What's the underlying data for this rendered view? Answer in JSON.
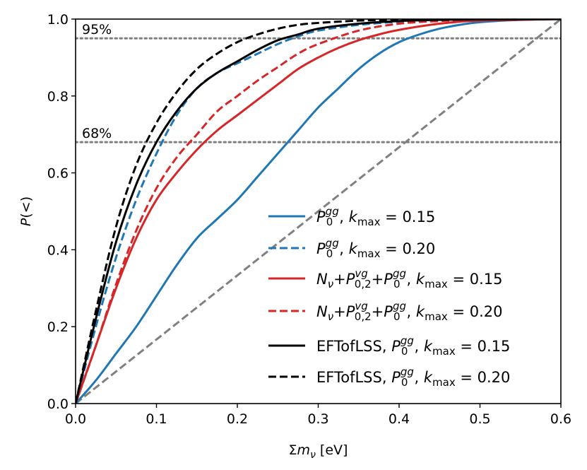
{
  "chart_data": {
    "type": "line",
    "title": "",
    "xlabel": "Σm_ν [eV]",
    "ylabel": "P(<)",
    "xlim": [
      0.0,
      0.6
    ],
    "ylim": [
      0.0,
      1.0
    ],
    "xticks": [
      0.0,
      0.1,
      0.2,
      0.3,
      0.4,
      0.5,
      0.6
    ],
    "xtick_labels": [
      "0.0",
      "0.1",
      "0.2",
      "0.3",
      "0.4",
      "0.5",
      "0.6"
    ],
    "yticks": [
      0.0,
      0.2,
      0.4,
      0.6,
      0.8,
      1.0
    ],
    "ytick_labels": [
      "0.0",
      "0.2",
      "0.4",
      "0.6",
      "0.8",
      "1.0"
    ],
    "grid": false,
    "legend_position": "lower-right",
    "reference_lines": [
      {
        "label": "95%",
        "y": 0.95,
        "style": "dotted",
        "color": "#808080"
      },
      {
        "label": "68%",
        "y": 0.68,
        "style": "dotted",
        "color": "#808080"
      }
    ],
    "diagonal": {
      "x": [
        0.0,
        0.6
      ],
      "y": [
        0.0,
        1.0
      ],
      "style": "dashed",
      "color": "#808080"
    },
    "series": [
      {
        "name": "P0gg, kmax = 0.15",
        "color": "#1f77b4",
        "style": "solid",
        "x": [
          0,
          0.025,
          0.05,
          0.075,
          0.1,
          0.125,
          0.15,
          0.175,
          0.2,
          0.225,
          0.25,
          0.275,
          0.3,
          0.325,
          0.35,
          0.375,
          0.4,
          0.425,
          0.45,
          0.475,
          0.5,
          0.55,
          0.6
        ],
        "y": [
          0,
          0.06,
          0.13,
          0.2,
          0.28,
          0.36,
          0.43,
          0.48,
          0.53,
          0.59,
          0.65,
          0.71,
          0.77,
          0.82,
          0.87,
          0.91,
          0.94,
          0.96,
          0.975,
          0.985,
          0.992,
          0.998,
          1.0
        ]
      },
      {
        "name": "P0gg, kmax = 0.20",
        "color": "#1f77b4",
        "style": "dashed",
        "x": [
          0,
          0.025,
          0.05,
          0.075,
          0.1,
          0.125,
          0.15,
          0.175,
          0.2,
          0.225,
          0.25,
          0.275,
          0.3,
          0.35,
          0.4,
          0.45,
          0.5,
          0.6
        ],
        "y": [
          0,
          0.2,
          0.38,
          0.53,
          0.65,
          0.75,
          0.82,
          0.86,
          0.885,
          0.91,
          0.935,
          0.955,
          0.97,
          0.985,
          0.993,
          0.997,
          0.999,
          1.0
        ]
      },
      {
        "name": "Nν+P02vg+P0gg, kmax = 0.15",
        "color": "#d62728",
        "style": "solid",
        "x": [
          0,
          0.025,
          0.05,
          0.075,
          0.1,
          0.125,
          0.15,
          0.175,
          0.2,
          0.225,
          0.25,
          0.275,
          0.3,
          0.325,
          0.35,
          0.375,
          0.4,
          0.45,
          0.5,
          0.6
        ],
        "y": [
          0,
          0.15,
          0.3,
          0.43,
          0.53,
          0.6,
          0.66,
          0.71,
          0.75,
          0.79,
          0.83,
          0.87,
          0.9,
          0.925,
          0.945,
          0.96,
          0.972,
          0.988,
          0.996,
          1.0
        ]
      },
      {
        "name": "Nν+P02vg+P0gg, kmax = 0.20",
        "color": "#d62728",
        "style": "dashed",
        "x": [
          0,
          0.025,
          0.05,
          0.075,
          0.1,
          0.125,
          0.15,
          0.175,
          0.2,
          0.225,
          0.25,
          0.275,
          0.3,
          0.35,
          0.4,
          0.45,
          0.5,
          0.6
        ],
        "y": [
          0,
          0.15,
          0.31,
          0.45,
          0.56,
          0.64,
          0.7,
          0.76,
          0.8,
          0.84,
          0.875,
          0.91,
          0.935,
          0.97,
          0.988,
          0.995,
          0.998,
          1.0
        ]
      },
      {
        "name": "EFTofLSS, P0gg, kmax = 0.15",
        "color": "#000000",
        "style": "solid",
        "x": [
          0,
          0.025,
          0.05,
          0.075,
          0.1,
          0.125,
          0.15,
          0.175,
          0.2,
          0.225,
          0.25,
          0.275,
          0.3,
          0.35,
          0.4,
          0.45,
          0.5,
          0.6
        ],
        "y": [
          0,
          0.22,
          0.42,
          0.57,
          0.68,
          0.76,
          0.82,
          0.86,
          0.89,
          0.92,
          0.945,
          0.96,
          0.975,
          0.988,
          0.995,
          0.998,
          0.999,
          1.0
        ]
      },
      {
        "name": "EFTofLSS, P0gg, kmax = 0.20",
        "color": "#000000",
        "style": "dashed",
        "x": [
          0,
          0.025,
          0.05,
          0.075,
          0.1,
          0.125,
          0.15,
          0.175,
          0.2,
          0.225,
          0.25,
          0.275,
          0.3,
          0.35,
          0.4,
          0.45,
          0.6
        ],
        "y": [
          0,
          0.24,
          0.46,
          0.62,
          0.73,
          0.81,
          0.87,
          0.91,
          0.94,
          0.96,
          0.975,
          0.985,
          0.99,
          0.996,
          0.998,
          0.999,
          1.0
        ]
      }
    ],
    "legend": [
      {
        "base": "P",
        "sup": "gg",
        "sub": "0",
        "suffix": ", k",
        "ksub": "max",
        "value": " = 0.15"
      },
      {
        "base": "P",
        "sup": "gg",
        "sub": "0",
        "suffix": ", k",
        "ksub": "max",
        "value": " = 0.20"
      },
      {
        "base": "N",
        "nsub": "ν",
        "mid": "+P",
        "midsup": "vg",
        "midsub": "0,2",
        "mid2": "+P",
        "sup": "gg",
        "sub": "0",
        "suffix": ", k",
        "ksub": "max",
        "value": " = 0.15"
      },
      {
        "base": "N",
        "nsub": "ν",
        "mid": "+P",
        "midsup": "vg",
        "midsub": "0,2",
        "mid2": "+P",
        "sup": "gg",
        "sub": "0",
        "suffix": ", k",
        "ksub": "max",
        "value": " = 0.20"
      },
      {
        "prefix": "EFTofLSS, ",
        "base": "P",
        "sup": "gg",
        "sub": "0",
        "suffix": ", k",
        "ksub": "max",
        "value": " = 0.15"
      },
      {
        "prefix": "EFTofLSS, ",
        "base": "P",
        "sup": "gg",
        "sub": "0",
        "suffix": ", k",
        "ksub": "max",
        "value": " = 0.20"
      }
    ]
  }
}
